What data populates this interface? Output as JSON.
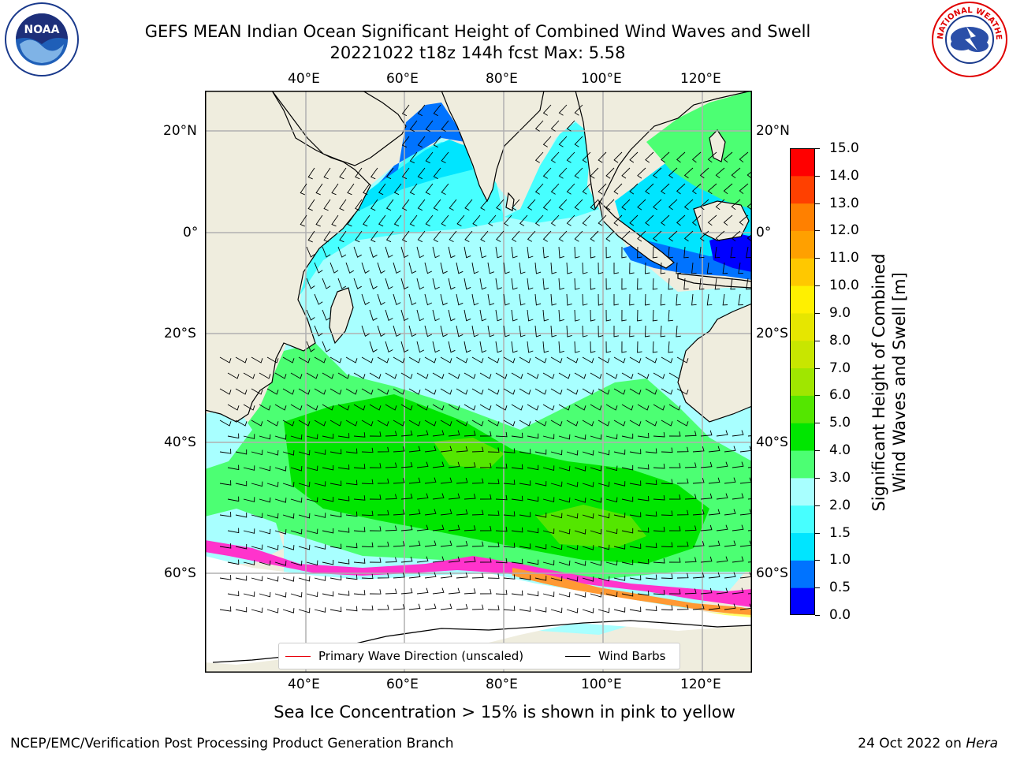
{
  "header": {
    "title_line1": "GEFS MEAN Indian Ocean Significant Height of Combined Wind Waves and Swell",
    "title_line2": "20221022 t18z 144h fcst   Max: 5.58"
  },
  "logos": {
    "left": {
      "icon": "noaa-logo",
      "text": "NOAA"
    },
    "right": {
      "icon": "national-weather-service-logo",
      "text": "NATIONAL WEATHER SERVICE"
    }
  },
  "map": {
    "lon_ticks_top": [
      "40°E",
      "60°E",
      "80°E",
      "100°E",
      "120°E"
    ],
    "lon_ticks_bottom": [
      "40°E",
      "60°E",
      "80°E",
      "100°E",
      "120°E"
    ],
    "lat_ticks_left": [
      "20°N",
      "0°",
      "20°S",
      "40°S",
      "60°S"
    ],
    "lat_ticks_right": [
      "20°N",
      "0°",
      "20°S",
      "40°S",
      "60°S"
    ],
    "lon_range": [
      20,
      130
    ],
    "lat_range": [
      -75,
      28
    ],
    "field": "significant wave height",
    "max_value": 5.58,
    "colors": {
      "land": "#efedde",
      "antarctica": "#ffffff",
      "grid": "#b0b0b0",
      "wave_arrow": "#e8000b",
      "wind_barb": "#000000",
      "sea_ice": [
        "#ff00ff",
        "#ff9933",
        "#ffff66"
      ]
    }
  },
  "legend": {
    "primary_wave_label": "Primary Wave Direction (unscaled)",
    "wind_barbs_label": "Wind Barbs",
    "primary_wave_color": "#e8000b",
    "wind_barbs_color": "#000000"
  },
  "colorbar": {
    "label_line1": "Significant Height of Combined",
    "label_line2": "Wind Waves and Swell [m]",
    "tick_labels": [
      "15.0",
      "14.0",
      "13.0",
      "12.0",
      "11.0",
      "10.0",
      "9.0",
      "8.0",
      "7.0",
      "6.0",
      "5.0",
      "4.0",
      "3.0",
      "2.0",
      "1.5",
      "1.0",
      "0.5",
      "0.0"
    ],
    "levels": [
      0,
      0.5,
      1,
      1.5,
      2,
      3,
      4,
      5,
      6,
      7,
      8,
      9,
      10,
      11,
      12,
      13,
      14,
      15
    ],
    "colors": [
      "#0000ff",
      "#0073ff",
      "#00e5ff",
      "#47ffff",
      "#a8ffff",
      "#4cff73",
      "#00e600",
      "#54e600",
      "#a0e600",
      "#c8e600",
      "#e6e600",
      "#fff000",
      "#ffc800",
      "#ffa000",
      "#ff8000",
      "#ff4000",
      "#ff0000"
    ]
  },
  "footer": {
    "sea_ice_note": "Sea Ice Concentration > 15% is shown in pink to yellow",
    "credit": "NCEP/EMC/Verification Post Processing Product Generation Branch",
    "date_prefix": "24 Oct 2022 on ",
    "machine": "Hera"
  }
}
